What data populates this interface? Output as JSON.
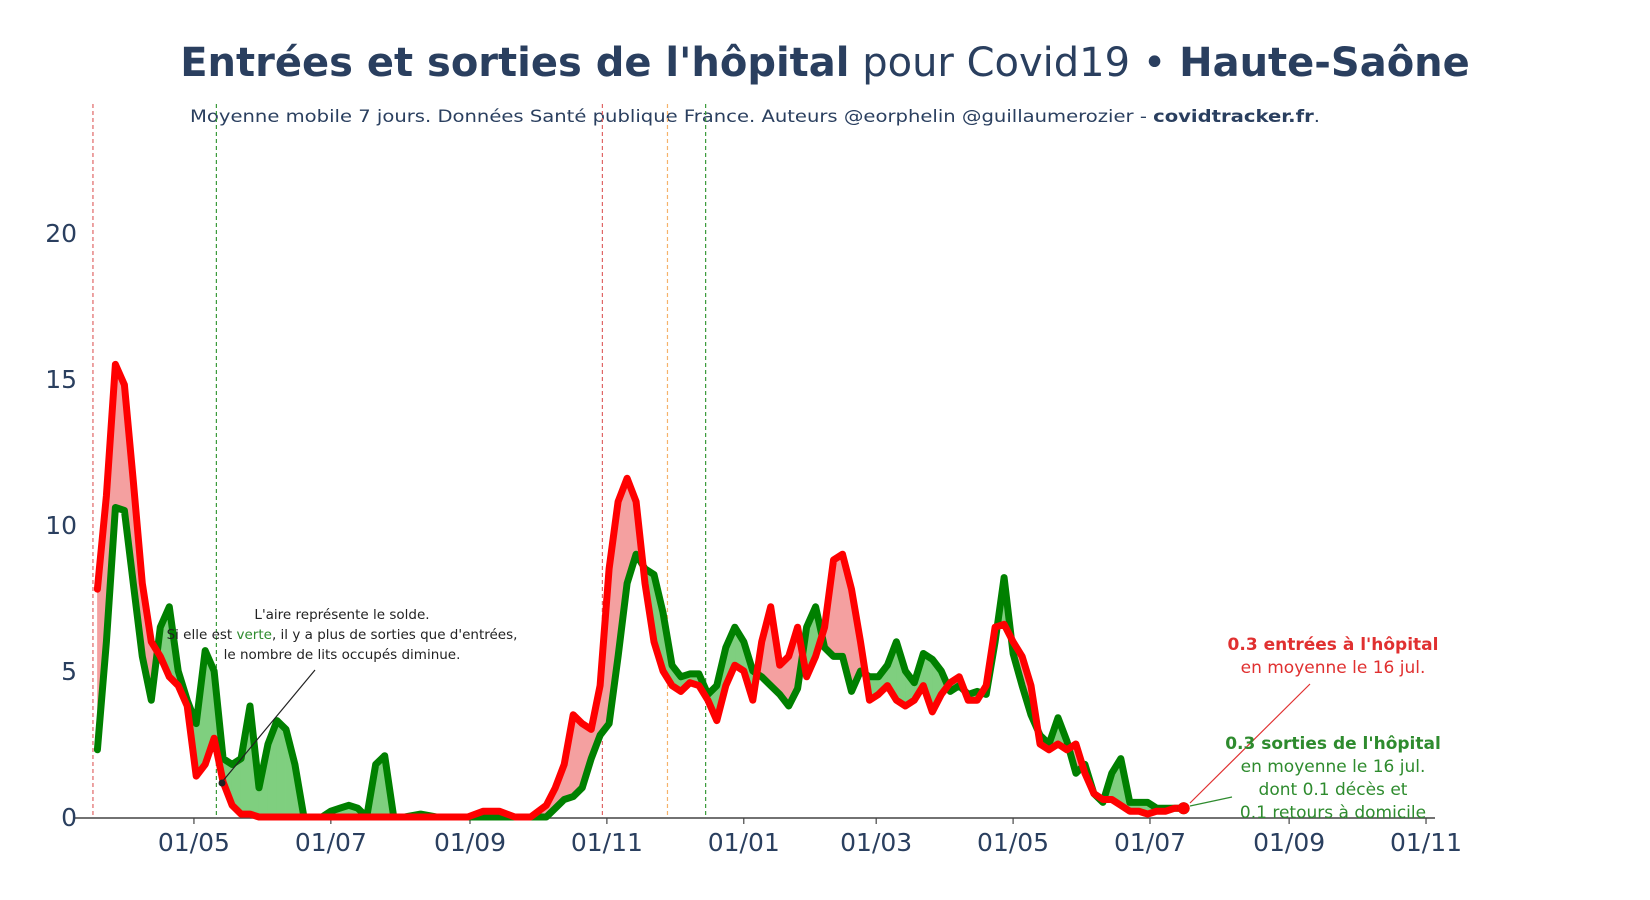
{
  "header": {
    "title_bold": "Entrées et sorties de l'hôpital",
    "title_normal": " pour Covid19 • ",
    "title_region": "Haute-Saône",
    "subtitle_text": "Moyenne mobile 7 jours. Données Santé publique France. Auteurs @eorphelin @guillaumerozier - ",
    "subtitle_site": "covidtracker.fr",
    "subtitle_end": "."
  },
  "annotation": {
    "line1": "L'aire représente le solde.",
    "line2_pre": "Si elle est ",
    "line2_green": "verte",
    "line2_post": ", il y a plus de sorties que d'entrées,",
    "line3": "le nombre de lits occupés diminue."
  },
  "labels": {
    "entrees_bold": "0.3 entrées à l'hôpital",
    "entrees_sub": "en moyenne le 16 jul.",
    "sorties_bold": "0.3 sorties de l'hôpital",
    "sorties_sub1": "en moyenne le 16 jul.",
    "sorties_sub2": "dont 0.1 décès et",
    "sorties_sub3": "0.1 retours à domicile"
  },
  "colors": {
    "entrees": "#ff0000",
    "sorties": "#008000",
    "fill_red": "#f4a0a0",
    "fill_green": "#7fcf7f",
    "text": "#2a3f5f",
    "vline_red": "#e06666",
    "vline_green": "#3a9a3a",
    "vline_orange": "#f6b26b"
  },
  "chart_data": {
    "type": "line",
    "title": "Entrées et sorties de l'hôpital pour Covid19 • Haute-Saône",
    "subtitle": "Moyenne mobile 7 jours. Données Santé publique France. Auteurs @eorphelin @guillaumerozier - covidtracker.fr.",
    "xlabel": "",
    "ylabel": "",
    "ylim": [
      0,
      24
    ],
    "yticks": [
      0,
      5,
      10,
      15,
      20
    ],
    "xlim": [
      "2020-03-09",
      "2021-11-05"
    ],
    "xticks": [
      {
        "date": "2020-05-01",
        "label": "01/05"
      },
      {
        "date": "2020-07-01",
        "label": "01/07"
      },
      {
        "date": "2020-09-01",
        "label": "01/09"
      },
      {
        "date": "2020-11-01",
        "label": "01/11"
      },
      {
        "date": "2021-01-01",
        "label": "01/01"
      },
      {
        "date": "2021-03-01",
        "label": "01/03"
      },
      {
        "date": "2021-05-01",
        "label": "01/05"
      },
      {
        "date": "2021-07-01",
        "label": "01/07"
      },
      {
        "date": "2021-09-01",
        "label": "01/09"
      },
      {
        "date": "2021-11-01",
        "label": "01/11"
      }
    ],
    "vlines": [
      {
        "date": "2020-03-17",
        "color": "red"
      },
      {
        "date": "2020-05-11",
        "color": "green"
      },
      {
        "date": "2020-10-30",
        "color": "red"
      },
      {
        "date": "2020-11-28",
        "color": "orange"
      },
      {
        "date": "2020-12-15",
        "color": "green"
      }
    ],
    "x": [
      "2020-03-19",
      "2020-03-23",
      "2020-03-27",
      "2020-03-31",
      "2020-04-04",
      "2020-04-08",
      "2020-04-12",
      "2020-04-16",
      "2020-04-20",
      "2020-04-24",
      "2020-04-28",
      "2020-05-02",
      "2020-05-06",
      "2020-05-10",
      "2020-05-14",
      "2020-05-18",
      "2020-05-22",
      "2020-05-26",
      "2020-05-30",
      "2020-06-03",
      "2020-06-07",
      "2020-06-11",
      "2020-06-15",
      "2020-06-19",
      "2020-06-23",
      "2020-06-27",
      "2020-07-01",
      "2020-07-05",
      "2020-07-09",
      "2020-07-13",
      "2020-07-17",
      "2020-07-21",
      "2020-07-25",
      "2020-07-29",
      "2020-08-03",
      "2020-08-10",
      "2020-08-17",
      "2020-08-24",
      "2020-08-31",
      "2020-09-07",
      "2020-09-14",
      "2020-09-21",
      "2020-09-28",
      "2020-10-05",
      "2020-10-09",
      "2020-10-13",
      "2020-10-17",
      "2020-10-21",
      "2020-10-25",
      "2020-10-29",
      "2020-11-02",
      "2020-11-06",
      "2020-11-10",
      "2020-11-14",
      "2020-11-18",
      "2020-11-22",
      "2020-11-26",
      "2020-11-30",
      "2020-12-04",
      "2020-12-08",
      "2020-12-12",
      "2020-12-16",
      "2020-12-20",
      "2020-12-24",
      "2020-12-28",
      "2021-01-01",
      "2021-01-05",
      "2021-01-09",
      "2021-01-13",
      "2021-01-17",
      "2021-01-21",
      "2021-01-25",
      "2021-01-29",
      "2021-02-02",
      "2021-02-06",
      "2021-02-10",
      "2021-02-14",
      "2021-02-18",
      "2021-02-22",
      "2021-02-26",
      "2021-03-02",
      "2021-03-06",
      "2021-03-10",
      "2021-03-14",
      "2021-03-18",
      "2021-03-22",
      "2021-03-26",
      "2021-03-30",
      "2021-04-03",
      "2021-04-07",
      "2021-04-11",
      "2021-04-15",
      "2021-04-19",
      "2021-04-23",
      "2021-04-27",
      "2021-05-01",
      "2021-05-05",
      "2021-05-09",
      "2021-05-13",
      "2021-05-17",
      "2021-05-21",
      "2021-05-25",
      "2021-05-29",
      "2021-06-02",
      "2021-06-06",
      "2021-06-10",
      "2021-06-14",
      "2021-06-18",
      "2021-06-22",
      "2021-06-26",
      "2021-06-30",
      "2021-07-04",
      "2021-07-08",
      "2021-07-12",
      "2021-07-16"
    ],
    "series": [
      {
        "name": "entrées à l'hôpital",
        "values": [
          7.8,
          11.0,
          15.5,
          14.8,
          11.5,
          8.0,
          6.0,
          5.5,
          4.8,
          4.5,
          3.8,
          1.4,
          1.8,
          2.7,
          1.2,
          0.4,
          0.1,
          0.1,
          0.0,
          0.0,
          0.0,
          0.0,
          0.0,
          0.0,
          0.0,
          0.0,
          0.0,
          0.0,
          0.0,
          0.0,
          0.0,
          0.0,
          0.0,
          0.0,
          0.0,
          0.0,
          0.0,
          0.0,
          0.0,
          0.2,
          0.2,
          0.0,
          0.0,
          0.4,
          1.0,
          1.8,
          3.5,
          3.2,
          3.0,
          4.5,
          8.5,
          10.8,
          11.6,
          10.8,
          8.0,
          6.0,
          5.0,
          4.5,
          4.3,
          4.6,
          4.5,
          4.0,
          3.3,
          4.5,
          5.2,
          5.0,
          4.0,
          6.0,
          7.2,
          5.2,
          5.5,
          6.5,
          4.8,
          5.5,
          6.5,
          8.8,
          9.0,
          7.8,
          6.0,
          4.0,
          4.2,
          4.5,
          4.0,
          3.8,
          4.0,
          4.5,
          3.6,
          4.2,
          4.6,
          4.8,
          4.0,
          4.0,
          4.5,
          6.5,
          6.6,
          6.0,
          5.5,
          4.5,
          2.5,
          2.3,
          2.5,
          2.3,
          2.5,
          1.5,
          0.8,
          0.6,
          0.6,
          0.4,
          0.2,
          0.2,
          0.1,
          0.2,
          0.2,
          0.3,
          0.3
        ]
      },
      {
        "name": "sorties de l'hôpital",
        "values": [
          2.3,
          6.0,
          10.6,
          10.5,
          8.0,
          5.5,
          4.0,
          6.5,
          7.2,
          5.0,
          4.0,
          3.2,
          5.7,
          5.0,
          2.0,
          1.8,
          2.0,
          3.8,
          1.0,
          2.5,
          3.3,
          3.0,
          1.8,
          0.0,
          0.0,
          0.0,
          0.2,
          0.3,
          0.4,
          0.3,
          0.0,
          1.8,
          2.1,
          0.0,
          0.0,
          0.1,
          0.0,
          0.0,
          0.0,
          0.0,
          0.0,
          0.0,
          0.0,
          0.0,
          0.3,
          0.6,
          0.7,
          1.0,
          2.0,
          2.8,
          3.2,
          5.5,
          8.0,
          9.0,
          8.5,
          8.3,
          7.0,
          5.2,
          4.8,
          4.9,
          4.9,
          4.2,
          4.5,
          5.8,
          6.5,
          6.0,
          5.0,
          4.8,
          4.5,
          4.2,
          3.8,
          4.4,
          6.5,
          7.2,
          5.8,
          5.5,
          5.5,
          4.3,
          5.0,
          4.8,
          4.8,
          5.2,
          6.0,
          5.0,
          4.6,
          5.6,
          5.4,
          5.0,
          4.3,
          4.5,
          4.2,
          4.3,
          4.2,
          6.0,
          8.2,
          5.6,
          4.5,
          3.5,
          2.8,
          2.5,
          3.4,
          2.6,
          1.5,
          1.8,
          0.8,
          0.5,
          1.5,
          2.0,
          0.5,
          0.5,
          0.5,
          0.3,
          0.3,
          0.3,
          0.3
        ]
      }
    ],
    "latest": {
      "date": "2021-07-16",
      "entrees": 0.3,
      "sorties": 0.3,
      "deces": 0.1,
      "retours_domicile": 0.1
    },
    "grid": false,
    "legend": "none"
  }
}
